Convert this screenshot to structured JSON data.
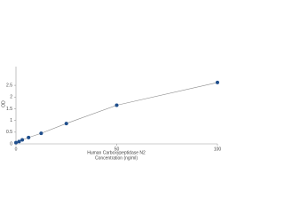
{
  "chart_data": {
    "type": "scatter",
    "x_label": "Human Carboxypeptidase N2",
    "x_label_2": "Concentration (ng/ml)",
    "y_label": "OD",
    "x": [
      0,
      1.56,
      3.12,
      6.25,
      12.5,
      25,
      50,
      100
    ],
    "values": [
      0.05,
      0.1,
      0.17,
      0.27,
      0.45,
      0.87,
      1.65,
      2.62
    ],
    "color": "#1f4e8c",
    "line_color": "#8a8a8a",
    "xlim": [
      0,
      100
    ],
    "xticks": [
      0,
      50,
      100
    ],
    "ylim": [
      0,
      3.3
    ],
    "yticks": [
      0,
      0.5,
      1,
      1.5,
      2,
      2.5
    ],
    "grid": false
  }
}
